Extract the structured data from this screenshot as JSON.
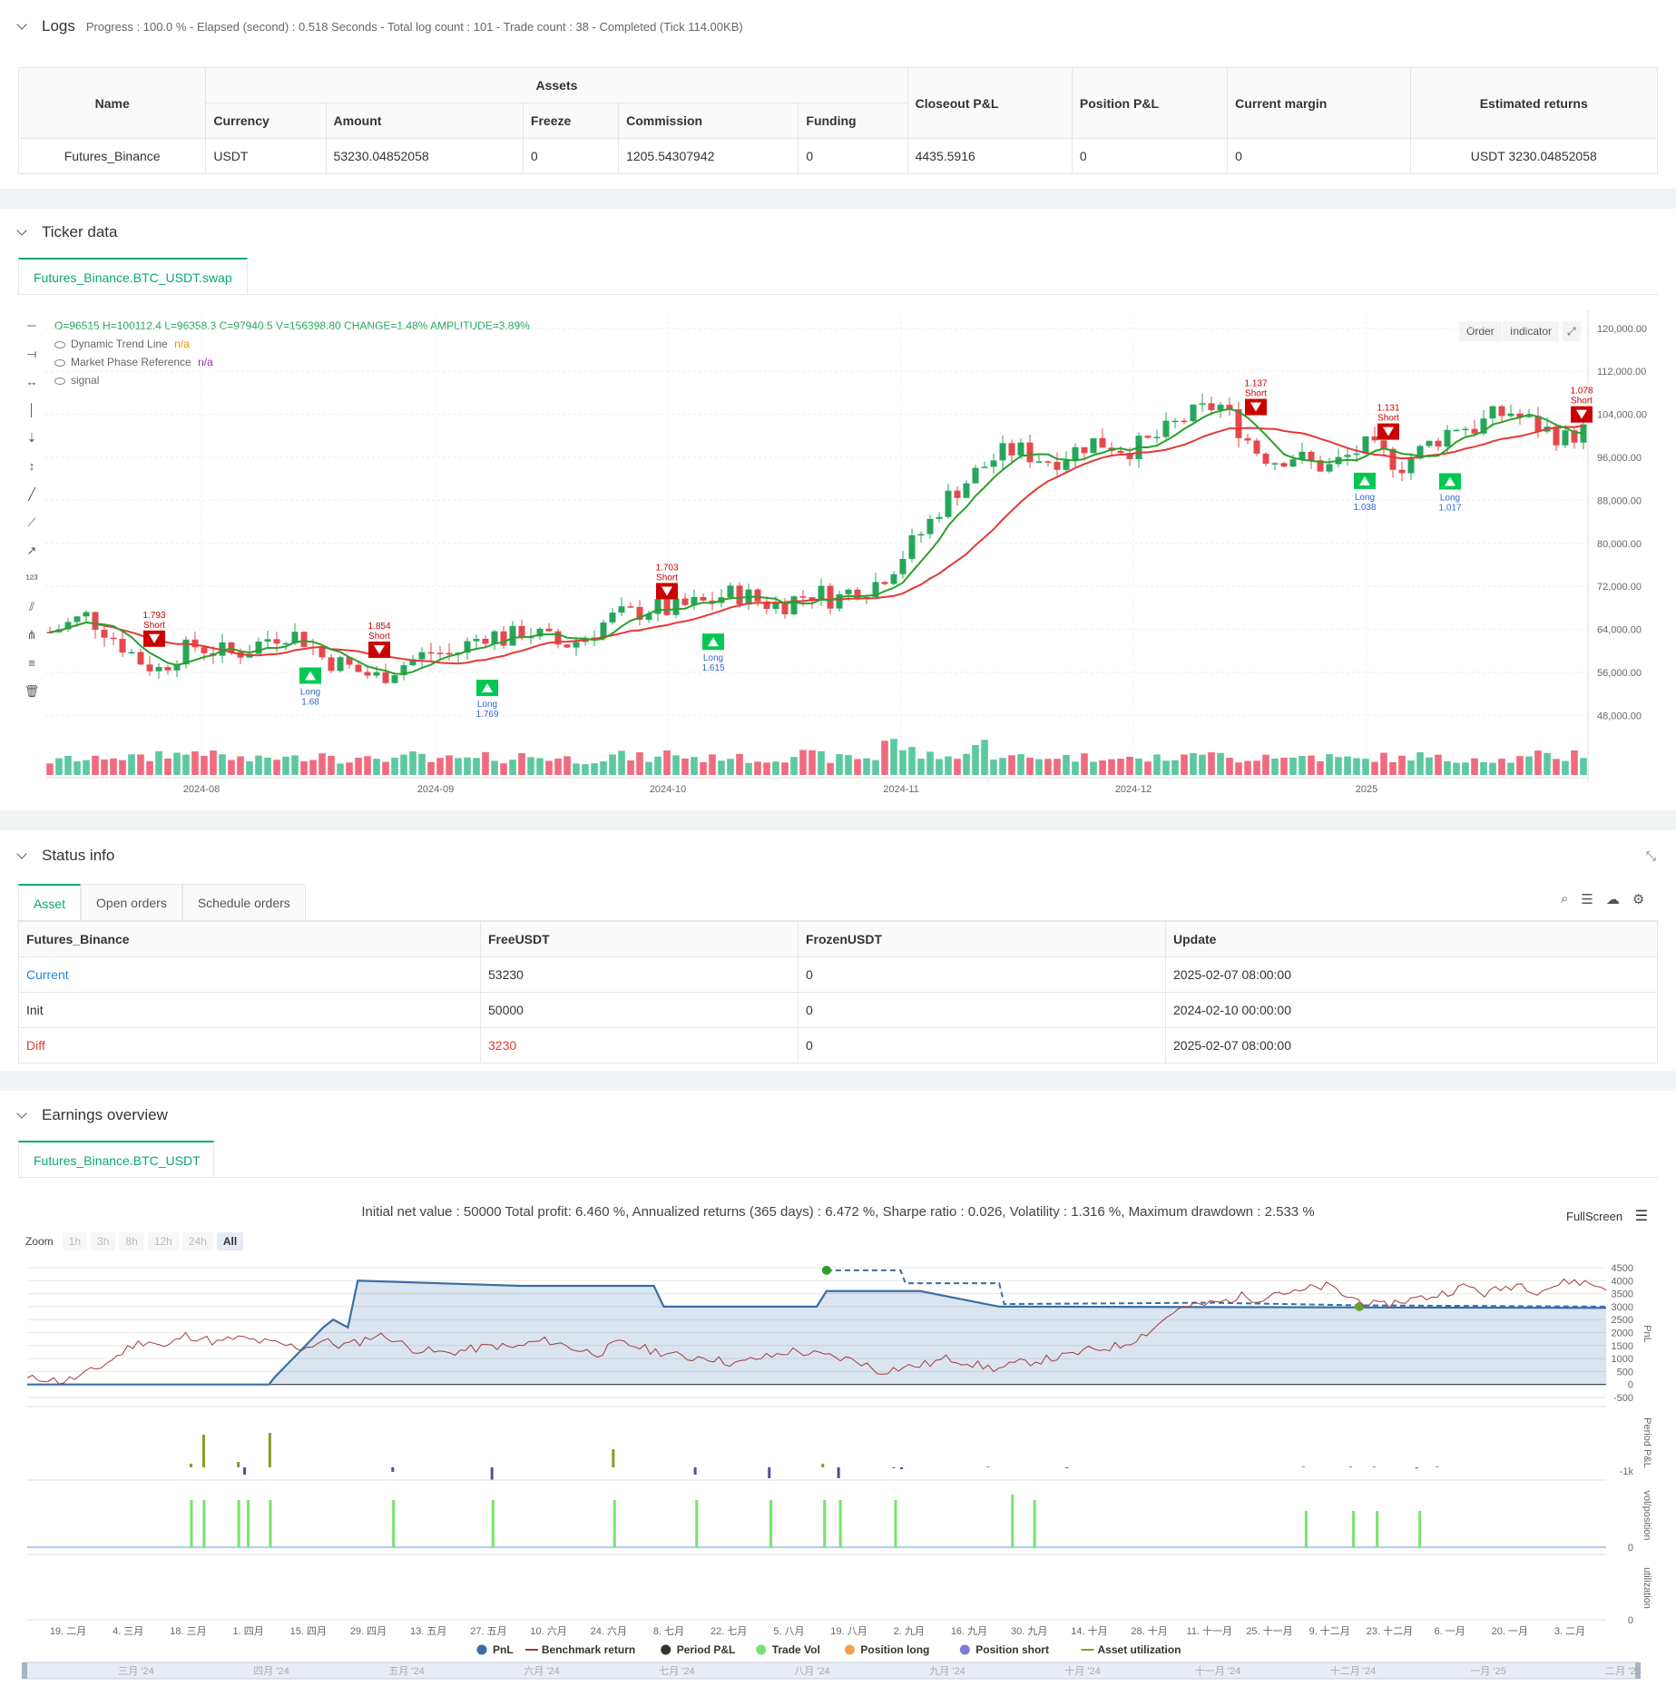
{
  "logs": {
    "title": "Logs",
    "summary": "Progress : 100.0 % - Elapsed (second) : 0.518  Seconds - Total log count : 101 - Trade count : 38 - Completed (Tick 114.00KB)"
  },
  "assets_table": {
    "headers": {
      "name": "Name",
      "assets": "Assets",
      "currency": "Currency",
      "amount": "Amount",
      "freeze": "Freeze",
      "commission": "Commission",
      "funding": "Funding",
      "closeout": "Closeout P&L",
      "position": "Position P&L",
      "margin": "Current margin",
      "returns": "Estimated returns"
    },
    "row": {
      "name": "Futures_Binance",
      "currency": "USDT",
      "amount": "53230.04852058",
      "freeze": "0",
      "commission": "1205.54307942",
      "funding": "0",
      "closeout": "4435.5916",
      "position": "0",
      "margin": "0",
      "returns": "USDT 3230.04852058"
    }
  },
  "ticker": {
    "title": "Ticker data",
    "tab": "Futures_Binance.BTC_USDT.swap",
    "ohlc": "O=96515 H=100112.4 L=96358.3 C=97940.5 V=156398.80 CHANGE=1.48% AMPLITUDE=3.89%",
    "legend": [
      {
        "name": "Dynamic Trend Line",
        "value": "n/a"
      },
      {
        "name": "Market Phase Reference",
        "value": "n/a"
      },
      {
        "name": "signal",
        "value": ""
      }
    ],
    "buttons": {
      "order": "Order",
      "indicator": "Indicator"
    },
    "icons": [
      "horizontal-line-icon",
      "ray-icon",
      "extended-line-icon",
      "vertical-line-icon",
      "vertical-segment-icon",
      "vertical-ray-icon",
      "trend-line-icon",
      "trend-ray-icon",
      "arrow-line-icon",
      "price-label-icon",
      "parallel-channel-icon",
      "pitchfork-icon",
      "fib-icon",
      "trash-icon"
    ]
  },
  "chart_data": [
    {
      "type": "candlestick",
      "title": "",
      "y_ticks": [
        "120,000.00",
        "112,000.00",
        "104,000.00",
        "96,000.00",
        "88,000.00",
        "80,000.00",
        "72,000.00",
        "64,000.00",
        "56,000.00",
        "48,000.00"
      ],
      "ylim": [
        44000,
        122000
      ],
      "x_ticks": [
        "2024-08",
        "2024-09",
        "2024-10",
        "2024-11",
        "2024-12",
        "2025"
      ],
      "series": [
        {
          "name": "Dynamic Trend Line",
          "color": "#2ca02c"
        },
        {
          "name": "Market Phase Reference",
          "color": "#e53935"
        }
      ],
      "close_path": [
        63500,
        65000,
        66500,
        64000,
        61000,
        58000,
        56500,
        59500,
        61000,
        60000,
        59500,
        60500,
        62500,
        63500,
        62000,
        58500,
        57500,
        56000,
        55000,
        57000,
        58500,
        60000,
        59000,
        61500,
        63500,
        62000,
        64000,
        62500,
        61000,
        62000,
        64500,
        66500,
        67000,
        68000,
        67500,
        68500,
        69000,
        70500,
        70500,
        69000,
        68500,
        70000,
        71000,
        69500,
        71500,
        72000,
        75000,
        79000,
        83000,
        88000,
        91000,
        94000,
        96500,
        97500,
        96000,
        95500,
        97000,
        99000,
        98500,
        97500,
        98500,
        100500,
        103000,
        104500,
        106000,
        102000,
        97500,
        95500,
        96500,
        95000,
        94000,
        96000,
        98000,
        96500,
        94500,
        97000,
        99500,
        102000,
        101500,
        103500,
        104500,
        102500,
        101000,
        99500,
        101000
      ],
      "volume": [
        10,
        12,
        11,
        14,
        13,
        12,
        16,
        15,
        18,
        14,
        12,
        11,
        13,
        12,
        14,
        16,
        12,
        11,
        13,
        12,
        14,
        10,
        12,
        11,
        13,
        12,
        14,
        13,
        12,
        11,
        12,
        14,
        13,
        12,
        16,
        13,
        12,
        14,
        12,
        11,
        13,
        15,
        14,
        12,
        13,
        12,
        28,
        18,
        14,
        12,
        16,
        22,
        15,
        13,
        12,
        14,
        13,
        12,
        15,
        12,
        11,
        13,
        12,
        18,
        14,
        12,
        13,
        15,
        12,
        14,
        13,
        12,
        11,
        13,
        12,
        14,
        12,
        11,
        13,
        12,
        11,
        12,
        14,
        13,
        16
      ],
      "signals": [
        {
          "type": "Short",
          "value": "1.793"
        },
        {
          "type": "Long",
          "value": "1.68"
        },
        {
          "type": "Short",
          "value": "1.854"
        },
        {
          "type": "Long",
          "value": "1.769"
        },
        {
          "type": "Short",
          "value": "1.703"
        },
        {
          "type": "Long",
          "value": "1.615"
        },
        {
          "type": "Short",
          "value": "1.137"
        },
        {
          "type": "Long",
          "value": "1.038"
        },
        {
          "type": "Short",
          "value": "1.131"
        },
        {
          "type": "Long",
          "value": "1.017"
        },
        {
          "type": "Short",
          "value": "1.078"
        }
      ]
    },
    {
      "type": "line",
      "title": "",
      "summary": "Initial net value : 50000 Total profit: 6.460 %, Annualized returns (365 days) : 6.472 %, Sharpe ratio : 0.026, Volatility : 1.316 %, Maximum drawdown : 2.533 %",
      "y_ticks": [
        "4500",
        "4000",
        "3500",
        "3000",
        "2500",
        "2000",
        "1500",
        "1000",
        "500",
        "0",
        "-500"
      ],
      "ylim": [
        -500,
        4500
      ],
      "ylabel": "PnL",
      "x_ticks": [
        "19. 二月",
        "4. 三月",
        "18. 三月",
        "1. 四月",
        "15. 四月",
        "29. 四月",
        "13. 五月",
        "27. 五月",
        "10. 六月",
        "24. 六月",
        "8. 七月",
        "22. 七月",
        "5. 八月",
        "19. 八月",
        "2. 九月",
        "16. 九月",
        "30. 九月",
        "14. 十月",
        "28. 十月",
        "11. 十一月",
        "25. 十一月",
        "9. 十二月",
        "23. 十二月",
        "6. 一月",
        "20. 一月",
        "3. 二月"
      ],
      "pnl_steps": [
        [
          0,
          0
        ],
        [
          0.245,
          0
        ],
        [
          0.25,
          250
        ],
        [
          0.3,
          2200
        ],
        [
          0.31,
          2500
        ],
        [
          0.325,
          2200
        ],
        [
          0.335,
          4000
        ],
        [
          0.5,
          3800
        ],
        [
          0.635,
          3800
        ],
        [
          0.645,
          3000
        ],
        [
          0.8,
          3000
        ],
        [
          0.81,
          3600
        ],
        [
          0.905,
          3600
        ],
        [
          0.985,
          3000
        ],
        [
          1.0,
          3000
        ]
      ],
      "pnl_dashed": [
        [
          0.81,
          4400
        ],
        [
          0.885,
          4400
        ],
        [
          0.89,
          3900
        ],
        [
          0.985,
          3900
        ],
        [
          0.99,
          3100
        ],
        [
          1.2,
          3150
        ],
        [
          1.35,
          3050
        ],
        [
          1.6,
          3000
        ]
      ],
      "benchmark": [
        200,
        250,
        100,
        300,
        600,
        1000,
        1500,
        1700,
        1400,
        1900,
        1800,
        1600,
        1800,
        1700,
        1600,
        1500,
        1400,
        1700,
        1500,
        1600,
        1900,
        1800,
        1400,
        1300,
        1200,
        1300,
        1400,
        1500,
        1400,
        1600,
        1700,
        1500,
        1300,
        1200,
        1600,
        1500,
        1300,
        1200,
        1000,
        1100,
        900,
        800,
        1000,
        1100,
        1300,
        1200,
        1100,
        1000,
        900,
        500,
        600,
        700,
        800,
        1000,
        900,
        700,
        600,
        800,
        900,
        1000,
        1100,
        1300,
        1400,
        1500,
        1800,
        2200,
        2800,
        3000,
        3100,
        3200,
        3400,
        3300,
        3600,
        3500,
        3700,
        3800,
        3400,
        3200,
        3000,
        3200,
        3300,
        3400,
        3600,
        3800,
        3500,
        3700,
        3900,
        3600,
        3800,
        4000,
        3900,
        3700
      ],
      "legend": [
        {
          "name": "PnL",
          "color": "#3a6ea5"
        },
        {
          "name": "Benchmark return",
          "color": "#a33a3a"
        },
        {
          "name": "Period P&L",
          "color": "#333333"
        },
        {
          "name": "Trade Vol",
          "color": "#77e36b"
        },
        {
          "name": "Position long",
          "color": "#f5a04c"
        },
        {
          "name": "Position short",
          "color": "#7b7bdb"
        },
        {
          "name": "Asset utilization",
          "color": "#8a9a2a"
        }
      ]
    }
  ],
  "status": {
    "title": "Status info",
    "tabs": [
      "Asset",
      "Open orders",
      "Schedule orders"
    ],
    "headers": [
      "Futures_Binance",
      "FreeUSDT",
      "FrozenUSDT",
      "Update"
    ],
    "rows": [
      [
        "Current",
        "53230",
        "0",
        "2025-02-07 08:00:00"
      ],
      [
        "Init",
        "50000",
        "0",
        "2024-02-10 00:00:00"
      ],
      [
        "Diff",
        "3230",
        "0",
        "2025-02-07 08:00:00"
      ]
    ]
  },
  "earnings": {
    "title": "Earnings overview",
    "tab": "Futures_Binance.BTC_USDT",
    "fullscreen": "FullScreen",
    "zoom_label": "Zoom",
    "zoom_options": [
      "1h",
      "3h",
      "8h",
      "12h",
      "24h",
      "All"
    ],
    "period_pnl_label": "Period P&L",
    "vol_label": "vol/position",
    "util_label": "utilization",
    "period_min": "-1k",
    "vol_zero": "0",
    "util_zero": "0",
    "navigator_labels": [
      "三月 '24",
      "四月 '24",
      "五月 '24",
      "六月 '24",
      "七月 '24",
      "八月 '24",
      "九月 '24",
      "十月 '24",
      "十一月 '24",
      "十二月 '24",
      "一月 '25",
      "二月 '25"
    ]
  },
  "colors": {
    "accent": "#0aa678",
    "up": "#26a65b",
    "down": "#e5484d",
    "vol_up": "#5cc9a0",
    "vol_down": "#f06b7f"
  }
}
